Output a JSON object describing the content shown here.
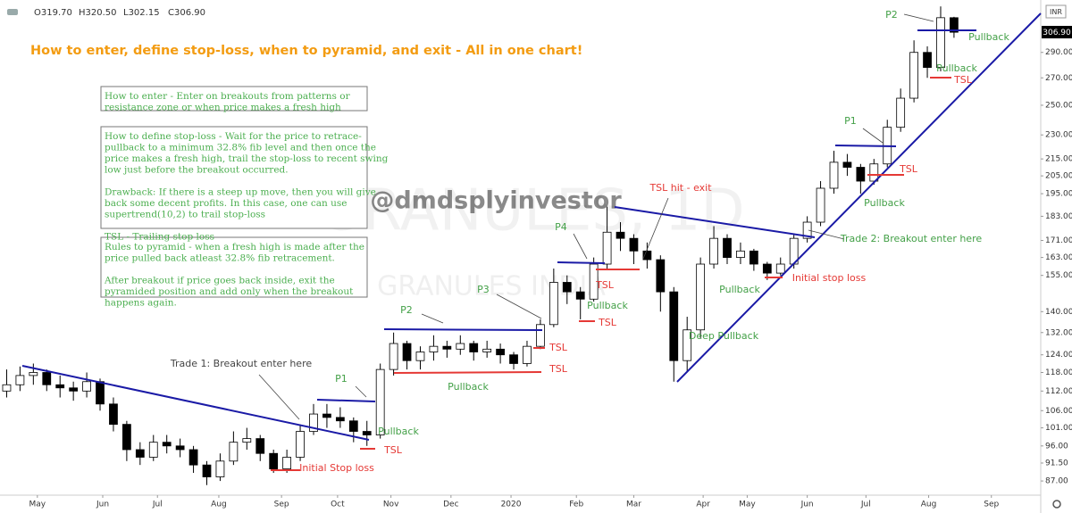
{
  "chart_data": {
    "type": "candlestick",
    "title": "How to enter, define stop-loss, when to pyramid, and exit - All in one chart!",
    "header_labels": [
      "O319.70",
      "H320.50",
      "L302.15",
      "C306.90"
    ],
    "currency": "INR",
    "last_price_label": "306.90",
    "log_scale": true,
    "grid": false,
    "up_color": "#ffffff",
    "down_color": "#000000",
    "x": [
      0,
      1,
      2,
      3,
      4,
      5,
      6,
      7,
      8,
      9,
      10,
      11,
      12,
      13,
      14,
      15,
      16,
      17,
      18,
      19,
      20,
      21,
      22,
      23,
      24,
      25,
      26,
      27,
      28,
      29,
      30,
      31,
      32,
      33,
      34,
      35,
      36,
      37,
      38,
      39,
      40,
      41,
      42,
      43,
      44,
      45,
      46,
      47,
      48,
      49,
      50,
      51,
      52,
      53,
      54,
      55,
      56,
      57,
      58,
      59,
      60,
      61,
      62,
      63,
      64,
      65,
      66,
      67,
      68,
      69,
      70,
      71
    ],
    "open": [
      112,
      114,
      117,
      118,
      114,
      113,
      112,
      115,
      108,
      102,
      95,
      93,
      97,
      96,
      95,
      91,
      88,
      92,
      97,
      98,
      94,
      90,
      93,
      100,
      105,
      104,
      103,
      100,
      99,
      119,
      128,
      122,
      125,
      127,
      126,
      128,
      125,
      126,
      124,
      121,
      127,
      135,
      152,
      148,
      145,
      160,
      175,
      172,
      166,
      162,
      148,
      122,
      133,
      160,
      172,
      163,
      166,
      160,
      156,
      160,
      172,
      180,
      198,
      213,
      210,
      202,
      212,
      235,
      255,
      290,
      278,
      319.7
    ],
    "high": [
      119,
      120,
      121,
      119,
      117,
      115,
      118,
      116,
      110,
      103,
      97,
      99,
      99,
      98,
      96,
      92,
      94,
      100,
      101,
      99,
      95,
      95,
      102,
      108,
      108,
      107,
      104,
      103,
      121,
      132,
      129,
      127,
      131,
      129,
      131,
      129,
      129,
      128,
      125,
      129,
      137,
      158,
      155,
      150,
      163,
      188,
      180,
      174,
      170,
      164,
      150,
      138,
      163,
      178,
      174,
      170,
      167,
      161,
      163,
      174,
      183,
      202,
      220,
      218,
      212,
      215,
      240,
      262,
      300,
      295,
      330,
      320.5
    ],
    "low": [
      110,
      112,
      114,
      112,
      110,
      109,
      110,
      106,
      100,
      92,
      91,
      92,
      94,
      93,
      89,
      86,
      87,
      91,
      95,
      92,
      89,
      89,
      92,
      99,
      101,
      101,
      97,
      96,
      98,
      117,
      119,
      119,
      122,
      123,
      124,
      122,
      123,
      121,
      119,
      120,
      126,
      134,
      143,
      137,
      144,
      158,
      166,
      160,
      158,
      140,
      115,
      118,
      130,
      158,
      160,
      160,
      157,
      153,
      155,
      158,
      170,
      178,
      195,
      205,
      195,
      200,
      210,
      232,
      252,
      270,
      275,
      302.15
    ],
    "close": [
      114,
      117,
      118,
      114,
      113,
      112,
      115,
      108,
      102,
      95,
      93,
      97,
      96,
      95,
      91,
      88,
      92,
      97,
      98,
      94,
      90,
      93,
      100,
      105,
      104,
      103,
      100,
      99,
      119,
      128,
      122,
      125,
      127,
      126,
      128,
      125,
      126,
      124,
      121,
      127,
      135,
      152,
      148,
      145,
      160,
      175,
      172,
      166,
      162,
      148,
      122,
      133,
      160,
      172,
      163,
      166,
      160,
      156,
      160,
      172,
      180,
      198,
      213,
      210,
      202,
      212,
      235,
      255,
      290,
      278,
      319.7,
      306.9
    ],
    "xlim": [
      -0.5,
      77.5
    ],
    "xticks": [
      {
        "value": 2.3,
        "label": "May"
      },
      {
        "value": 7.2,
        "label": "Jun"
      },
      {
        "value": 11.3,
        "label": "Jul"
      },
      {
        "value": 15.9,
        "label": "Aug"
      },
      {
        "value": 20.6,
        "label": "Sep"
      },
      {
        "value": 24.8,
        "label": "Oct"
      },
      {
        "value": 28.8,
        "label": "Nov"
      },
      {
        "value": 33.3,
        "label": "Dec"
      },
      {
        "value": 37.8,
        "label": "2020"
      },
      {
        "value": 42.7,
        "label": "Feb"
      },
      {
        "value": 47,
        "label": "Mar"
      },
      {
        "value": 52.2,
        "label": "Apr"
      },
      {
        "value": 55.5,
        "label": "May"
      },
      {
        "value": 60,
        "label": "Jun"
      },
      {
        "value": 64.4,
        "label": "Jul"
      },
      {
        "value": 69.1,
        "label": "Aug"
      },
      {
        "value": 73.8,
        "label": "Sep"
      }
    ],
    "ylim": [
      83.6,
      336
    ],
    "yticks": [
      {
        "value": 87,
        "label": "87.00"
      },
      {
        "value": 91.5,
        "label": "91.50"
      },
      {
        "value": 96,
        "label": "96.00"
      },
      {
        "value": 101,
        "label": "101.00"
      },
      {
        "value": 106,
        "label": "106.00"
      },
      {
        "value": 112,
        "label": "112.00"
      },
      {
        "value": 118,
        "label": "118.00"
      },
      {
        "value": 124,
        "label": "124.00"
      },
      {
        "value": 132,
        "label": "132.00"
      },
      {
        "value": 140,
        "label": "140.00"
      },
      {
        "value": 155,
        "label": "155.00"
      },
      {
        "value": 163,
        "label": "163.00"
      },
      {
        "value": 171,
        "label": "171.00"
      },
      {
        "value": 183,
        "label": "183.00"
      },
      {
        "value": 195,
        "label": "195.00"
      },
      {
        "value": 205,
        "label": "205.00"
      },
      {
        "value": 215,
        "label": "215.00"
      },
      {
        "value": 230,
        "label": "230.00"
      },
      {
        "value": 250,
        "label": "250.00"
      },
      {
        "value": 270,
        "label": "270.00"
      },
      {
        "value": 290,
        "label": "290.00"
      }
    ],
    "watermarks": [
      "@dmdsplyinvestor",
      "GRANULES, 1D",
      "GRANULES INDIA"
    ],
    "boxes": [
      {
        "paragraphs": [
          [
            "How to enter - Enter on breakouts from patterns or",
            "resistance zone or when price makes a fresh high"
          ]
        ]
      },
      {
        "paragraphs": [
          [
            "How to define stop-loss - Wait for the price to retrace-",
            "pullback to a minimum 32.8% fib level and then once the",
            "price makes a fresh high, trail the stop-loss to recent swing",
            "low just before the breakout occurred."
          ],
          [
            "Drawback: If there is a steep up move, then you will give",
            "back some decent profits. In this case, one can use",
            "supertrend(10,2) to trail stop-loss"
          ],
          [
            "TSL - Trailing stop loss"
          ]
        ]
      },
      {
        "paragraphs": [
          [
            "Rules to pyramid - when a fresh high is made after the",
            "price pulled back atleast 32.8% fib retracement."
          ],
          [
            "After breakout if price goes back inside, exit the",
            "pyramided position and add only when the breakout",
            "happens again."
          ]
        ]
      }
    ],
    "annotations": [
      {
        "text": "Trade 1: Breakout enter here",
        "color": "#444444"
      },
      {
        "text": "P1",
        "color": "#43a047"
      },
      {
        "text": "P2",
        "color": "#43a047"
      },
      {
        "text": "P3",
        "color": "#43a047"
      },
      {
        "text": "P4",
        "color": "#43a047"
      },
      {
        "text": "Pullback",
        "color": "#43a047"
      },
      {
        "text": "TSL",
        "color": "#e53935"
      },
      {
        "text": "Initial Stop loss",
        "color": "#e53935"
      },
      {
        "text": "TSL",
        "color": "#e53935"
      },
      {
        "text": "TSL",
        "color": "#e53935"
      },
      {
        "text": "Pullback",
        "color": "#43a047"
      },
      {
        "text": "TSL",
        "color": "#e53935"
      },
      {
        "text": "TSL",
        "color": "#e53935"
      },
      {
        "text": "Pullback",
        "color": "#43a047"
      },
      {
        "text": "TSL hit - exit",
        "color": "#e53935"
      },
      {
        "text": "Deep Pullback",
        "color": "#43a047"
      },
      {
        "text": "Pullback",
        "color": "#43a047"
      },
      {
        "text": "Initial stop loss",
        "color": "#e53935"
      },
      {
        "text": "Trade 2: Breakout enter here",
        "color": "#43a047"
      },
      {
        "text": "P1",
        "color": "#43a047"
      },
      {
        "text": "TSL",
        "color": "#e53935"
      },
      {
        "text": "Pullback",
        "color": "#43a047"
      },
      {
        "text": "P2",
        "color": "#43a047"
      },
      {
        "text": "Pullback",
        "color": "#43a047"
      },
      {
        "text": "Pullback",
        "color": "#43a047"
      },
      {
        "text": "TSL",
        "color": "#e53935"
      }
    ]
  }
}
